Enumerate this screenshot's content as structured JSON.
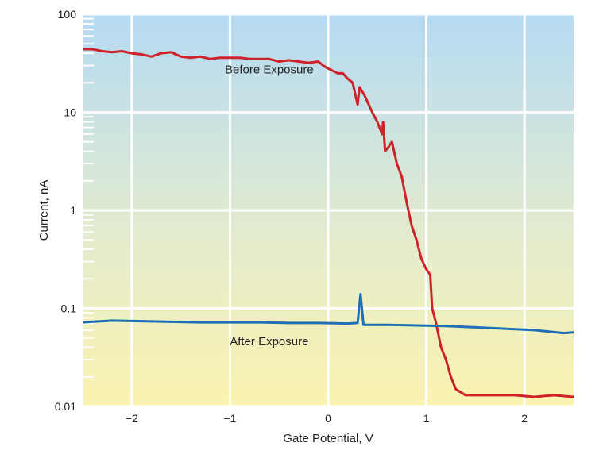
{
  "chart_data": {
    "type": "line",
    "xlabel": "Gate Potential, V",
    "ylabel": "Current, nA",
    "xlim": [
      -2.5,
      2.5
    ],
    "ylim": [
      0.01,
      100
    ],
    "yscale": "log",
    "grid": true,
    "x_ticks": [
      {
        "value": -2,
        "label": "−2"
      },
      {
        "value": -1,
        "label": "−1"
      },
      {
        "value": 0,
        "label": "0"
      },
      {
        "value": 1,
        "label": "1"
      },
      {
        "value": 2,
        "label": "2"
      }
    ],
    "y_ticks": [
      {
        "value": 100,
        "label": "100"
      },
      {
        "value": 10,
        "label": "10"
      },
      {
        "value": 1,
        "label": "1"
      },
      {
        "value": 0.1,
        "label": "0.1"
      },
      {
        "value": 0.01,
        "label": "0.01"
      }
    ],
    "series": [
      {
        "name": "Before Exposure",
        "color": "#cc2229",
        "points": [
          [
            -2.5,
            44
          ],
          [
            -2.4,
            44
          ],
          [
            -2.3,
            42
          ],
          [
            -2.2,
            41
          ],
          [
            -2.1,
            42
          ],
          [
            -2.0,
            40
          ],
          [
            -1.9,
            39
          ],
          [
            -1.8,
            37
          ],
          [
            -1.7,
            40
          ],
          [
            -1.6,
            41
          ],
          [
            -1.5,
            37
          ],
          [
            -1.4,
            36
          ],
          [
            -1.3,
            37
          ],
          [
            -1.2,
            35
          ],
          [
            -1.1,
            36
          ],
          [
            -1.0,
            36
          ],
          [
            -0.9,
            36
          ],
          [
            -0.8,
            35
          ],
          [
            -0.7,
            35
          ],
          [
            -0.6,
            35
          ],
          [
            -0.5,
            33
          ],
          [
            -0.4,
            34
          ],
          [
            -0.3,
            33
          ],
          [
            -0.2,
            32
          ],
          [
            -0.1,
            33
          ],
          [
            -0.05,
            30
          ],
          [
            0.0,
            28
          ],
          [
            0.1,
            25
          ],
          [
            0.15,
            25
          ],
          [
            0.2,
            22
          ],
          [
            0.25,
            20
          ],
          [
            0.3,
            12
          ],
          [
            0.32,
            18
          ],
          [
            0.37,
            15
          ],
          [
            0.45,
            10
          ],
          [
            0.5,
            8
          ],
          [
            0.55,
            6
          ],
          [
            0.56,
            8
          ],
          [
            0.58,
            4
          ],
          [
            0.62,
            4.5
          ],
          [
            0.65,
            5
          ],
          [
            0.7,
            3
          ],
          [
            0.75,
            2.2
          ],
          [
            0.8,
            1.2
          ],
          [
            0.85,
            0.7
          ],
          [
            0.9,
            0.5
          ],
          [
            0.95,
            0.32
          ],
          [
            1.0,
            0.25
          ],
          [
            1.04,
            0.22
          ],
          [
            1.06,
            0.1
          ],
          [
            1.1,
            0.07
          ],
          [
            1.15,
            0.04
          ],
          [
            1.2,
            0.03
          ],
          [
            1.25,
            0.02
          ],
          [
            1.3,
            0.015
          ],
          [
            1.4,
            0.013
          ],
          [
            1.5,
            0.013
          ],
          [
            1.7,
            0.013
          ],
          [
            1.9,
            0.013
          ],
          [
            2.1,
            0.0125
          ],
          [
            2.3,
            0.013
          ],
          [
            2.5,
            0.0125
          ]
        ]
      },
      {
        "name": "After Exposure",
        "color": "#1f6fb8",
        "points": [
          [
            -2.5,
            0.072
          ],
          [
            -2.2,
            0.075
          ],
          [
            -1.9,
            0.074
          ],
          [
            -1.6,
            0.073
          ],
          [
            -1.3,
            0.072
          ],
          [
            -1.0,
            0.072
          ],
          [
            -0.7,
            0.072
          ],
          [
            -0.4,
            0.071
          ],
          [
            -0.1,
            0.071
          ],
          [
            0.2,
            0.07
          ],
          [
            0.3,
            0.071
          ],
          [
            0.33,
            0.14
          ],
          [
            0.36,
            0.068
          ],
          [
            0.6,
            0.068
          ],
          [
            0.9,
            0.067
          ],
          [
            1.2,
            0.066
          ],
          [
            1.5,
            0.064
          ],
          [
            1.8,
            0.062
          ],
          [
            2.1,
            0.06
          ],
          [
            2.4,
            0.056
          ],
          [
            2.5,
            0.057
          ]
        ]
      }
    ],
    "annotations": [
      {
        "text": "Before Exposure",
        "x": -0.6,
        "y": 25
      },
      {
        "text": "After Exposure",
        "x": -0.6,
        "y": 0.042
      }
    ]
  }
}
